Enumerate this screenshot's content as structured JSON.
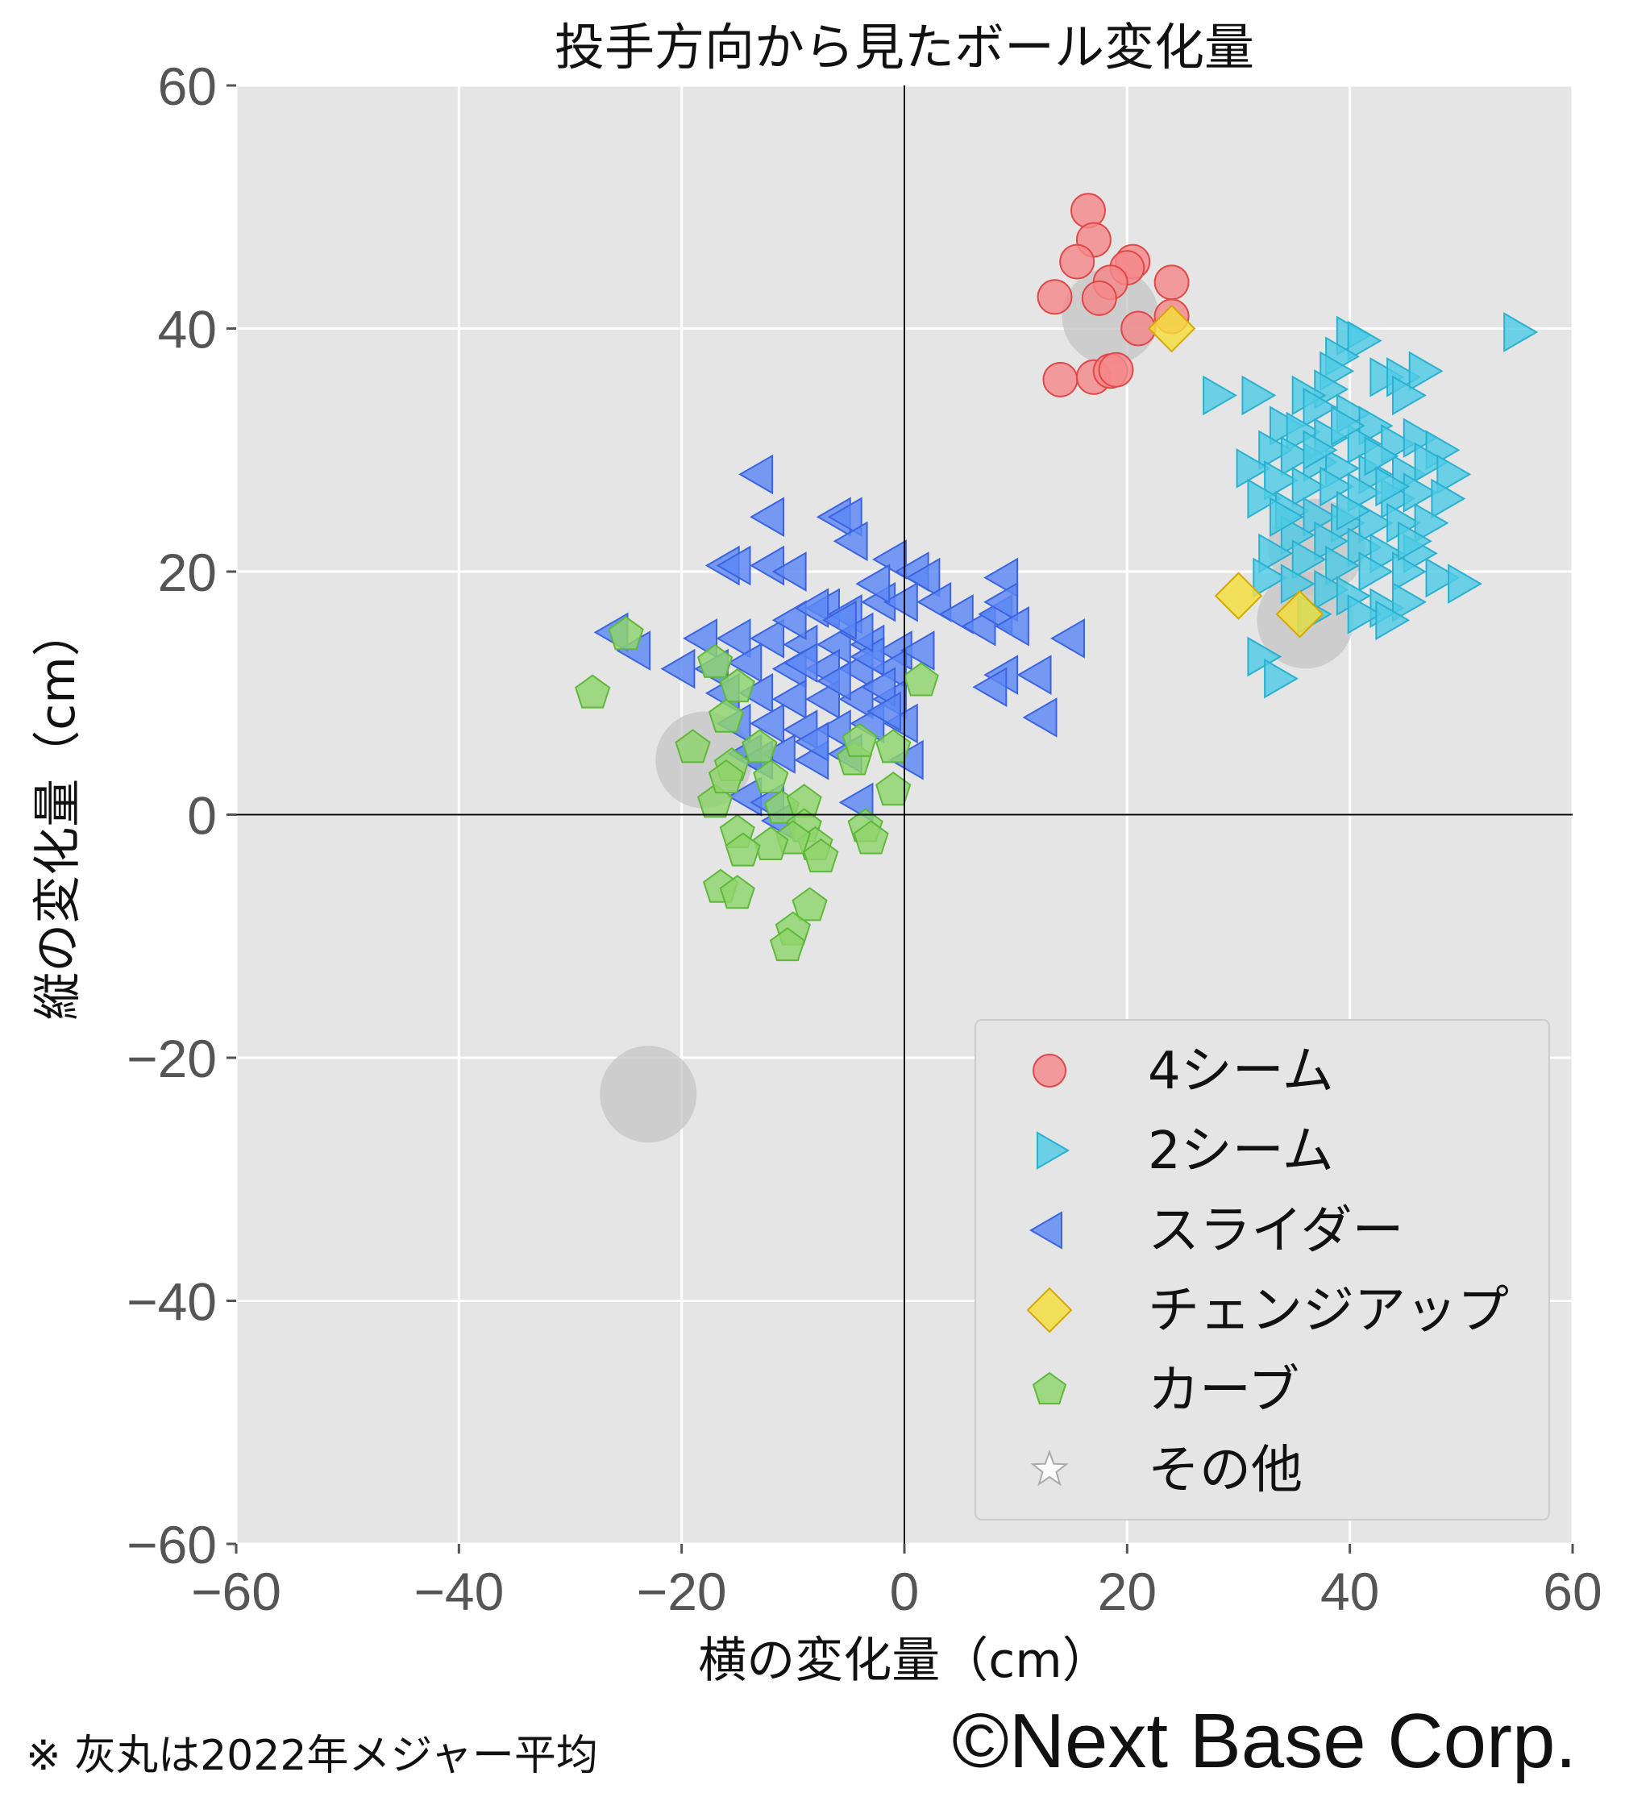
{
  "chart_data": {
    "type": "scatter",
    "title": "投手方向から見たボール変化量",
    "xlabel": "横の変化量（cm）",
    "ylabel": "縦の変化量（cm）",
    "xlim": [
      -60,
      60
    ],
    "ylim": [
      -60,
      60
    ],
    "xticks": [
      "−60",
      "−40",
      "−20",
      "0",
      "20",
      "40",
      "60"
    ],
    "yticks": [
      "60",
      "40",
      "20",
      "0",
      "−20",
      "−40",
      "−60"
    ],
    "grid": true,
    "legend_position": "bottom-right",
    "legend": [
      {
        "label": "4シーム",
        "marker": "circle",
        "color": "#f4888a"
      },
      {
        "label": "2シーム",
        "marker": "triangle-right",
        "color": "#4fcbe4"
      },
      {
        "label": "スライダー",
        "marker": "triangle-left",
        "color": "#5b88f4"
      },
      {
        "label": "チェンジアップ",
        "marker": "diamond",
        "color": "#f5de3a"
      },
      {
        "label": "カーブ",
        "marker": "pentagon",
        "color": "#8fd46b"
      },
      {
        "label": "その他",
        "marker": "star",
        "color": "#ffffff"
      }
    ],
    "series": [
      {
        "name": "4シーム",
        "points": [
          [
            16.5,
            49.7
          ],
          [
            17,
            47.3
          ],
          [
            15.5,
            45.5
          ],
          [
            20.5,
            45.5
          ],
          [
            20,
            45
          ],
          [
            18.5,
            43.8
          ],
          [
            17.5,
            42.5
          ],
          [
            13.5,
            42.6
          ],
          [
            24,
            43.8
          ],
          [
            24,
            41
          ],
          [
            21,
            40
          ],
          [
            14,
            35.8
          ],
          [
            17,
            36
          ],
          [
            18.5,
            36.5
          ],
          [
            19,
            36.6
          ]
        ]
      },
      {
        "name": "2シーム",
        "points": [
          [
            55,
            39.7
          ],
          [
            40,
            39.4
          ],
          [
            41,
            39
          ],
          [
            39,
            37.7
          ],
          [
            38.5,
            36.5
          ],
          [
            43,
            36
          ],
          [
            44.5,
            36
          ],
          [
            46.5,
            36.5
          ],
          [
            45,
            34.5
          ],
          [
            38,
            35
          ],
          [
            28,
            34.5
          ],
          [
            31.5,
            34.5
          ],
          [
            36,
            34.5
          ],
          [
            37,
            33.5
          ],
          [
            40,
            33
          ],
          [
            42,
            32
          ],
          [
            34,
            32
          ],
          [
            35.5,
            31.5
          ],
          [
            38,
            31
          ],
          [
            41,
            30.5
          ],
          [
            44,
            30.5
          ],
          [
            46,
            31
          ],
          [
            48,
            30
          ],
          [
            33,
            30
          ],
          [
            35,
            29.5
          ],
          [
            37,
            29
          ],
          [
            39,
            28.5
          ],
          [
            42,
            28
          ],
          [
            45,
            28
          ],
          [
            47,
            29
          ],
          [
            49,
            28
          ],
          [
            31,
            28.5
          ],
          [
            33.5,
            27.5
          ],
          [
            36,
            27
          ],
          [
            38.5,
            27
          ],
          [
            41,
            26.5
          ],
          [
            44,
            26
          ],
          [
            46,
            26.5
          ],
          [
            48.5,
            26
          ],
          [
            32,
            26
          ],
          [
            34.5,
            25
          ],
          [
            37,
            24.5
          ],
          [
            39.5,
            24
          ],
          [
            42,
            24
          ],
          [
            44.5,
            24
          ],
          [
            47,
            24
          ],
          [
            35,
            23
          ],
          [
            38,
            22.5
          ],
          [
            41,
            22
          ],
          [
            43,
            21.5
          ],
          [
            46,
            21.5
          ],
          [
            33,
            21.5
          ],
          [
            36,
            21
          ],
          [
            39,
            20.5
          ],
          [
            42,
            20
          ],
          [
            45,
            20
          ],
          [
            48,
            19.5
          ],
          [
            50,
            19
          ],
          [
            32.5,
            19.5
          ],
          [
            35,
            19
          ],
          [
            38,
            18.5
          ],
          [
            40,
            18
          ],
          [
            43,
            17
          ],
          [
            45,
            17.5
          ],
          [
            41,
            16.5
          ],
          [
            43.5,
            16
          ],
          [
            36.5,
            16.5
          ],
          [
            32,
            13
          ],
          [
            33.5,
            11.2
          ],
          [
            39.5,
            32
          ],
          [
            42.5,
            29.5
          ],
          [
            37,
            30
          ],
          [
            40,
            25
          ],
          [
            45.5,
            22.5
          ],
          [
            34,
            24.5
          ],
          [
            43.5,
            27
          ]
        ]
      },
      {
        "name": "スライダー",
        "points": [
          [
            -13,
            28
          ],
          [
            -12,
            24.5
          ],
          [
            -6,
            24.5
          ],
          [
            -5,
            24.5
          ],
          [
            -4.5,
            22.5
          ],
          [
            -16,
            20.5
          ],
          [
            -15,
            20.5
          ],
          [
            -12,
            20.5
          ],
          [
            -10,
            20
          ],
          [
            -1,
            21
          ],
          [
            1,
            20
          ],
          [
            2,
            19.5
          ],
          [
            9,
            19.5
          ],
          [
            -7,
            17
          ],
          [
            -5,
            16.5
          ],
          [
            -2,
            17.5
          ],
          [
            0,
            17.5
          ],
          [
            3,
            17.5
          ],
          [
            5,
            16.5
          ],
          [
            7,
            15.5
          ],
          [
            8.5,
            16.5
          ],
          [
            9,
            17.5
          ],
          [
            10,
            15.5
          ],
          [
            15,
            14.5
          ],
          [
            -26,
            15
          ],
          [
            -24,
            13.5
          ],
          [
            -18,
            14.5
          ],
          [
            -15,
            14.5
          ],
          [
            -12,
            14.5
          ],
          [
            -9,
            14
          ],
          [
            -6,
            14
          ],
          [
            -3,
            14
          ],
          [
            -0.5,
            13.5
          ],
          [
            1.5,
            13.5
          ],
          [
            -20,
            12
          ],
          [
            -17,
            12
          ],
          [
            -14,
            12.5
          ],
          [
            -10,
            12
          ],
          [
            -7,
            12
          ],
          [
            -4,
            12
          ],
          [
            -1,
            12
          ],
          [
            9,
            11.5
          ],
          [
            12,
            11.5
          ],
          [
            -16,
            10
          ],
          [
            -13,
            10
          ],
          [
            -10,
            9.5
          ],
          [
            -7,
            9.5
          ],
          [
            -4,
            9.5
          ],
          [
            -1,
            9.5
          ],
          [
            8,
            10.5
          ],
          [
            -15,
            7.5
          ],
          [
            -12,
            7.5
          ],
          [
            -9,
            7
          ],
          [
            -6,
            7
          ],
          [
            -3,
            7.5
          ],
          [
            0,
            7.5
          ],
          [
            12.5,
            8
          ],
          [
            -14,
            5
          ],
          [
            -11,
            5
          ],
          [
            -8,
            4.5
          ],
          [
            -5,
            5
          ],
          [
            0.5,
            4.5
          ],
          [
            -14,
            1.5
          ],
          [
            -12,
            1
          ],
          [
            -4,
            1
          ],
          [
            -11,
            -0.5
          ],
          [
            -3,
            13
          ],
          [
            -6,
            11
          ],
          [
            -8,
            6
          ],
          [
            -2,
            10.5
          ],
          [
            -10,
            16
          ],
          [
            -8,
            17
          ],
          [
            -4,
            15
          ],
          [
            -1.5,
            8.5
          ],
          [
            -5.5,
            16
          ],
          [
            -9,
            12.5
          ],
          [
            -13,
            4.5
          ],
          [
            -2.5,
            19
          ]
        ]
      },
      {
        "name": "チェンジアップ",
        "points": [
          [
            24,
            40
          ],
          [
            30,
            18
          ],
          [
            35.5,
            16.5
          ]
        ]
      },
      {
        "name": "カーブ",
        "points": [
          [
            -25,
            14.8
          ],
          [
            -28,
            10
          ],
          [
            -17,
            12.5
          ],
          [
            -15,
            10.5
          ],
          [
            -16,
            8
          ],
          [
            -15.5,
            4
          ],
          [
            -17,
            1
          ],
          [
            -13,
            5.5
          ],
          [
            -12,
            3
          ],
          [
            -11,
            0.5
          ],
          [
            -9,
            1
          ],
          [
            -9,
            -1
          ],
          [
            -8,
            -2.5
          ],
          [
            -7.5,
            -3.5
          ],
          [
            -10,
            -2
          ],
          [
            -12,
            -2.5
          ],
          [
            -15,
            -1.5
          ],
          [
            -14.5,
            -3
          ],
          [
            -16.5,
            -6
          ],
          [
            -15,
            -6.5
          ],
          [
            -8.5,
            -7.5
          ],
          [
            -10,
            -9.5
          ],
          [
            -10.5,
            -10.8
          ],
          [
            -4.5,
            4.5
          ],
          [
            -4,
            6
          ],
          [
            -3.5,
            -1
          ],
          [
            -3,
            -2
          ],
          [
            -1,
            2
          ],
          [
            -1,
            5.5
          ],
          [
            1.5,
            11
          ],
          [
            -19,
            5.5
          ],
          [
            -16,
            3
          ]
        ]
      }
    ],
    "league_average": {
      "label": "※ 灰丸は2022年メジャー平均",
      "points": [
        [
          18.5,
          41
        ],
        [
          37,
          22
        ],
        [
          36,
          16
        ],
        [
          -18,
          4.5
        ],
        [
          -23,
          -23
        ]
      ]
    },
    "credit": "©Next Base Corp."
  }
}
